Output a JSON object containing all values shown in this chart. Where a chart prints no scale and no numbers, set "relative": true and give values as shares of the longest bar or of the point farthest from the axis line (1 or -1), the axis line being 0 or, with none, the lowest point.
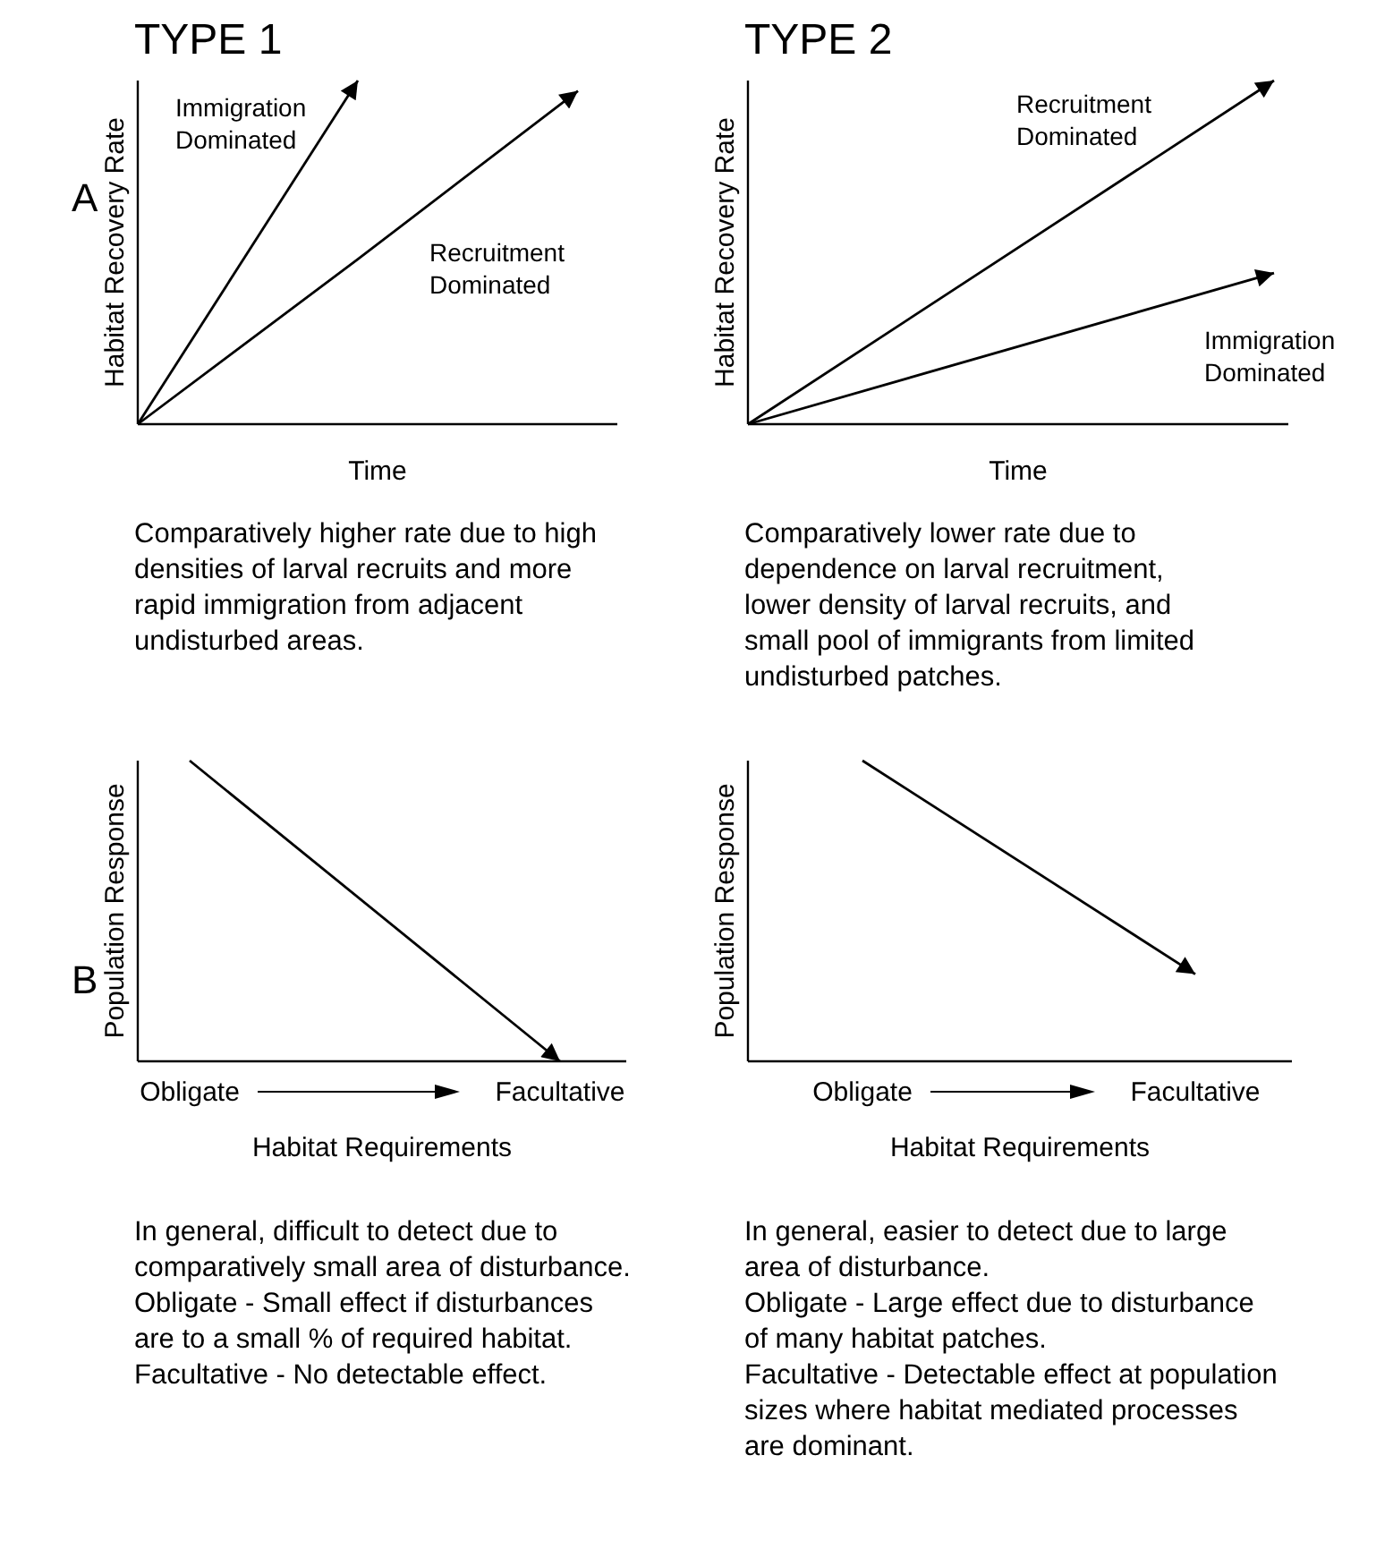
{
  "chart_data": [
    {
      "type": "line",
      "title": "TYPE 1",
      "xlabel": "Time",
      "ylabel": "Habitat Recovery Rate",
      "categories": [
        null,
        null,
        null
      ],
      "relative": true,
      "series": [
        {
          "name": "Immigration Dominated",
          "color": "#000000",
          "values": [
            0,
            1,
            null
          ]
        },
        {
          "name": "Recruitment Dominated",
          "color": "#000000",
          "values": [
            0,
            0.48,
            0.97
          ]
        }
      ],
      "annotations": [
        "A",
        "Comparatively higher rate due to high\ndensities of larval recruits and more\nrapid immigration from adjacent\nundisturbed areas."
      ]
    },
    {
      "type": "line",
      "title": "TYPE 2",
      "xlabel": "Time",
      "ylabel": "Habitat Recovery Rate",
      "categories": [
        null,
        null
      ],
      "relative": true,
      "series": [
        {
          "name": "Recruitment Dominated",
          "color": "#000000",
          "values": [
            0,
            1
          ]
        },
        {
          "name": "Immigration Dominated",
          "color": "#000000",
          "values": [
            0,
            0.44
          ]
        }
      ],
      "annotations": [
        "Comparatively lower rate due to\ndependence on larval recruitment,\nlower density of larval recruits, and\nsmall pool of immigrants from limited\nundisturbed patches."
      ]
    },
    {
      "type": "line",
      "xlabel": "Habitat Requirements",
      "ylabel": "Population Response",
      "categories": [
        "Obligate",
        "Facultative"
      ],
      "relative": true,
      "series": [
        {
          "color": "#000000",
          "values": [
            1,
            0
          ]
        }
      ],
      "annotations": [
        "B",
        "In general, difficult to detect due to\ncomparatively small area of disturbance.\nObligate - Small effect if disturbances\nare to a small % of required habitat.\nFacultative - No detectable effect."
      ]
    },
    {
      "type": "line",
      "xlabel": "Habitat Requirements",
      "ylabel": "Population Response",
      "categories": [
        "Obligate",
        "Facultative"
      ],
      "relative": true,
      "series": [
        {
          "color": "#000000",
          "values": [
            1,
            0.29
          ]
        }
      ],
      "annotations": [
        "In general, easier to detect due to large\narea of disturbance.\nObligate - Large effect due to disturbance\nof many habitat patches.\nFacultative - Detectable effect at population\nsizes where habitat mediated processes\nare dominant."
      ]
    }
  ]
}
